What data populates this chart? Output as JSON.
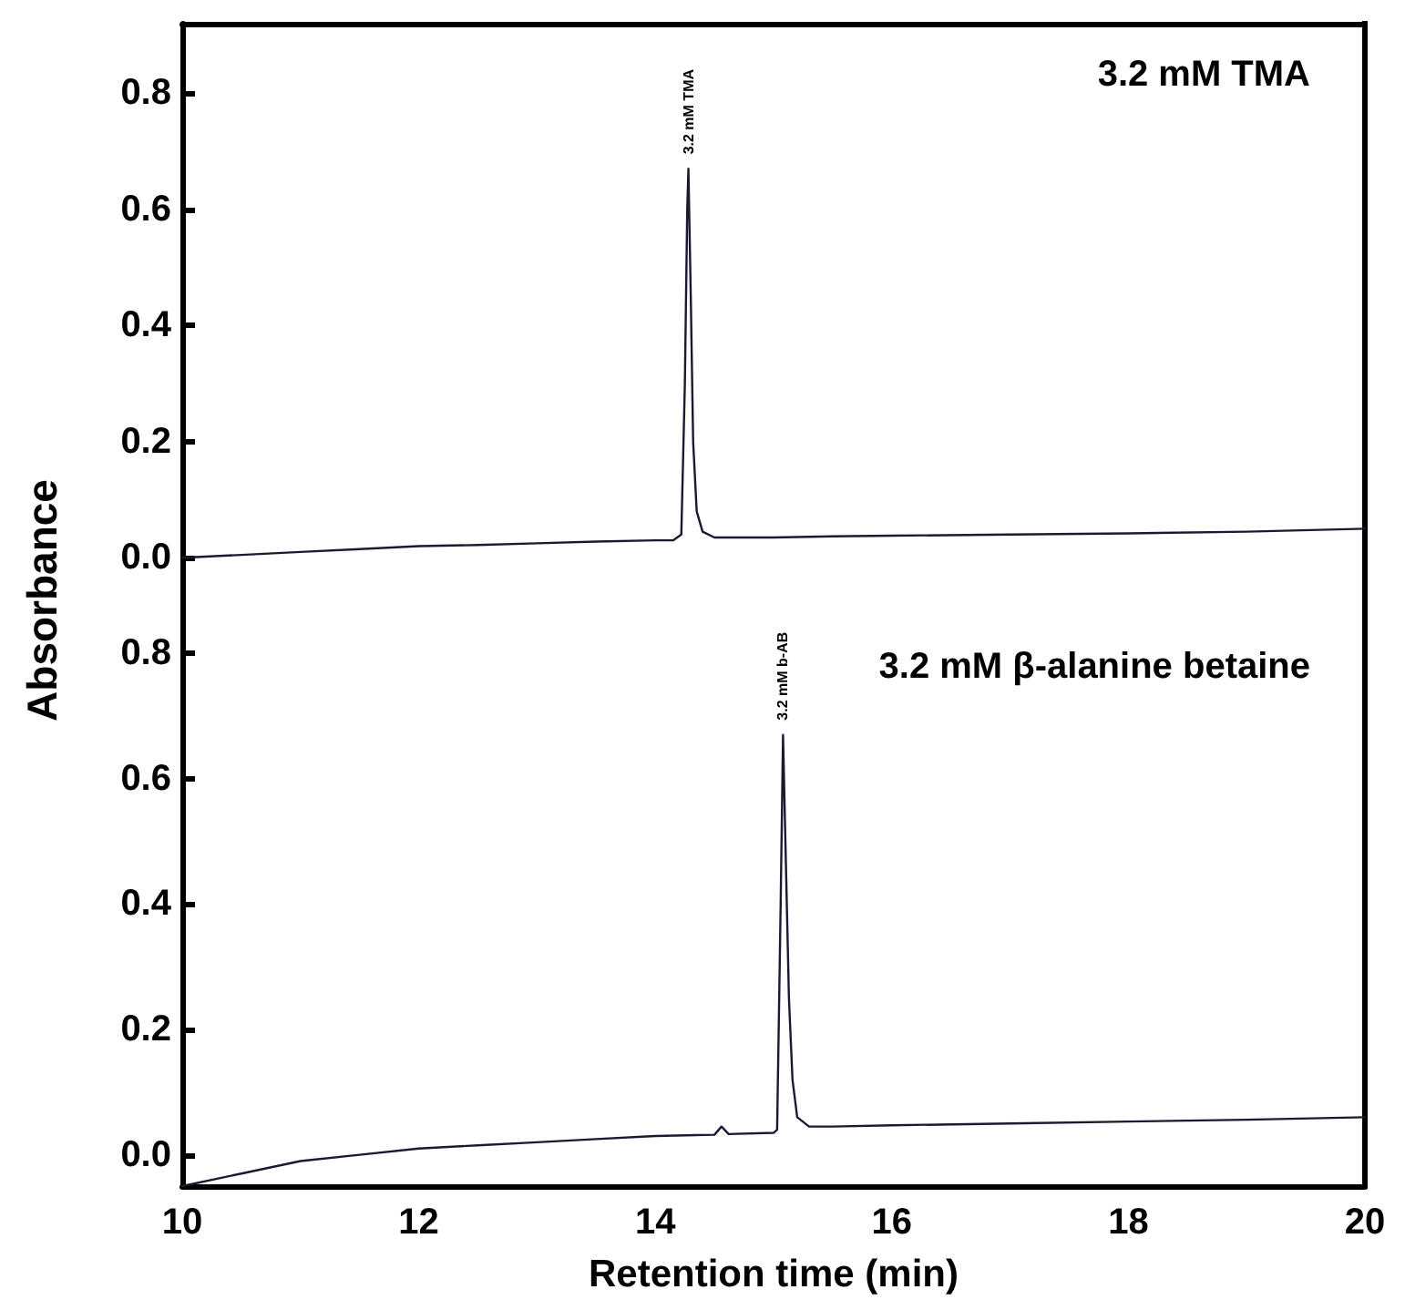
{
  "chart_data": [
    {
      "type": "line",
      "ylabel": "Absorbance",
      "xlim": [
        10,
        20
      ],
      "ylim": [
        -0.1,
        0.92
      ],
      "yticks": [
        {
          "value": 0,
          "label": "0.0"
        },
        {
          "value": 0.2,
          "label": "0.2"
        },
        {
          "value": 0.4,
          "label": "0.4"
        },
        {
          "value": 0.6,
          "label": "0.6"
        },
        {
          "value": 0.8,
          "label": "0.8"
        }
      ],
      "tick_labels": "y",
      "marker": "none",
      "line_style": "solid",
      "grid": false,
      "annotations": [
        "3.2 mM TMA",
        {
          "text": "3.2 mM TMA",
          "x": 14.28,
          "y": 0.67
        }
      ],
      "series": [
        {
          "color": "#1a1a33",
          "x": [
            10,
            10.5,
            11,
            11.5,
            12,
            12.5,
            13,
            13.5,
            14,
            14.15,
            14.22,
            14.25,
            14.27,
            14.28,
            14.3,
            14.32,
            14.35,
            14.4,
            14.5,
            15,
            15.5,
            16,
            17,
            18,
            19,
            20
          ],
          "values": [
            0.0,
            0.005,
            0.01,
            0.015,
            0.02,
            0.022,
            0.025,
            0.028,
            0.03,
            0.03,
            0.04,
            0.3,
            0.6,
            0.67,
            0.45,
            0.2,
            0.08,
            0.045,
            0.035,
            0.035,
            0.037,
            0.038,
            0.04,
            0.042,
            0.045,
            0.05
          ]
        }
      ]
    },
    {
      "type": "line",
      "xlabel": "Retention time (min)",
      "xlim": [
        10,
        20
      ],
      "xticks": [
        10,
        12,
        14,
        16,
        18,
        20
      ],
      "ylim": [
        -0.05,
        0.86
      ],
      "yticks": [
        {
          "value": 0,
          "label": "0.0"
        },
        {
          "value": 0.2,
          "label": "0.2"
        },
        {
          "value": 0.4,
          "label": "0.4"
        },
        {
          "value": 0.6,
          "label": "0.6"
        },
        {
          "value": 0.8,
          "label": "0.8"
        }
      ],
      "marker": "none",
      "line_style": "solid",
      "grid": false,
      "annotations": [
        "3.2 mM β-alanine betaine",
        {
          "text": "3.2 mM b-AB",
          "x": 15.08,
          "y": 0.67
        }
      ],
      "series": [
        {
          "color": "#1a1a33",
          "x": [
            10,
            10.5,
            11,
            11.5,
            12,
            12.5,
            13,
            13.5,
            14,
            14.5,
            14.56,
            14.62,
            15,
            15.03,
            15.06,
            15.08,
            15.1,
            15.13,
            15.16,
            15.2,
            15.3,
            15.5,
            16,
            17,
            18,
            19,
            20
          ],
          "values": [
            -0.05,
            -0.03,
            -0.01,
            0.0,
            0.01,
            0.015,
            0.02,
            0.025,
            0.03,
            0.032,
            0.045,
            0.033,
            0.035,
            0.04,
            0.4,
            0.67,
            0.5,
            0.25,
            0.12,
            0.06,
            0.045,
            0.045,
            0.047,
            0.05,
            0.053,
            0.056,
            0.06
          ]
        }
      ]
    }
  ]
}
